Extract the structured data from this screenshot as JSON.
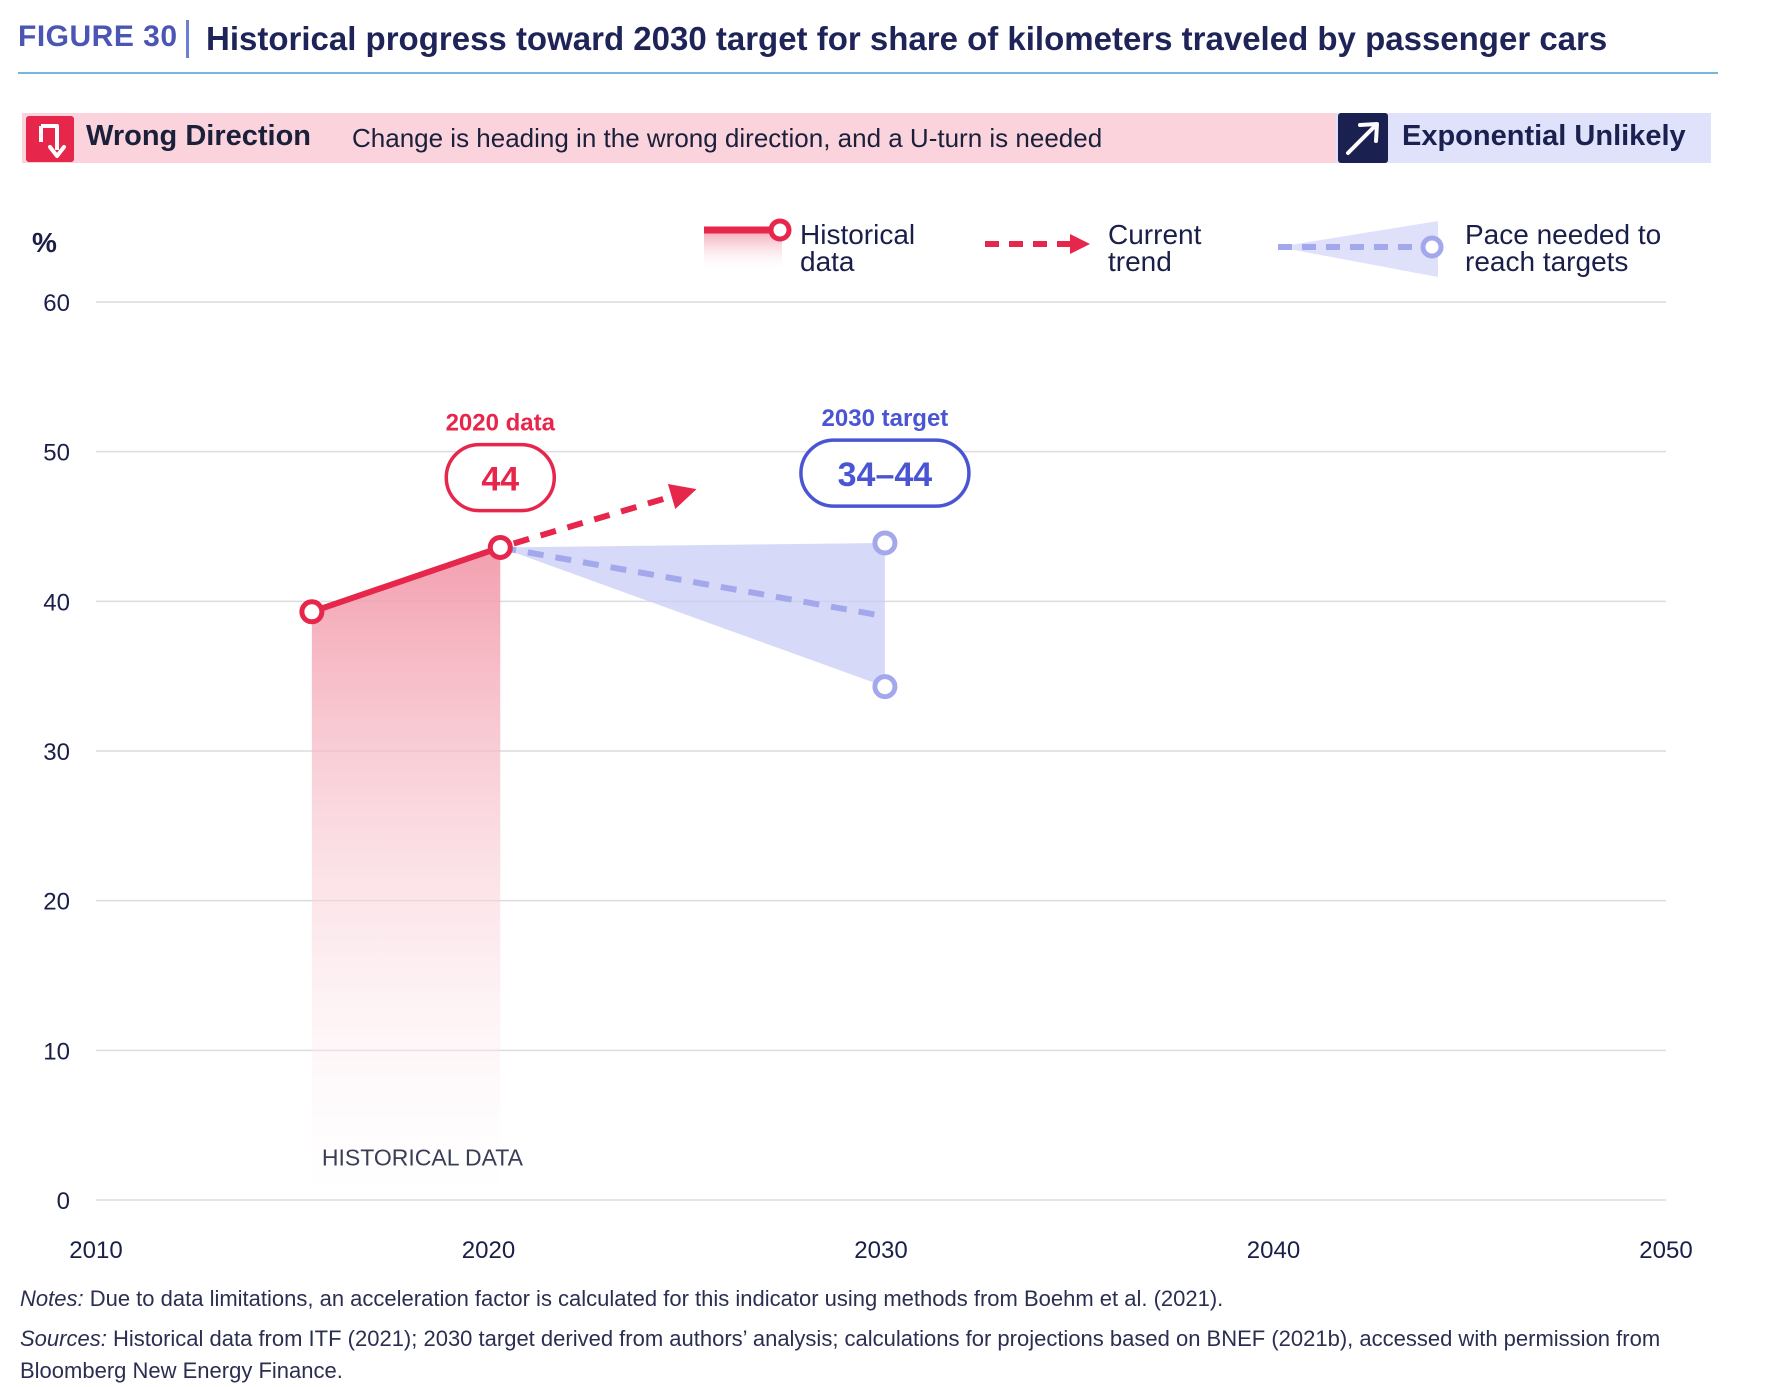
{
  "header": {
    "figure_number": "FIGURE 30",
    "title": "Historical progress toward 2030 target for share of kilometers traveled by passenger cars"
  },
  "status": {
    "label": "Wrong Direction",
    "description": "Change is heading in the wrong direction, and a U-turn is needed",
    "icon": "u-turn-down-arrow-icon",
    "color": "#e6264a",
    "band_color": "#fbd3dc"
  },
  "acceleration": {
    "label": "Exponential Unlikely",
    "icon": "diagonal-arrow-icon",
    "color": "#1a2150",
    "band_color": "#dfe2fa"
  },
  "chart_data": {
    "type": "line",
    "ylabel": "%",
    "xlim": [
      2010,
      2050
    ],
    "ylim": [
      0,
      60
    ],
    "x_ticks": [
      "2010",
      "2020",
      "2030",
      "2040",
      "2050"
    ],
    "y_ticks": [
      "0",
      "10",
      "20",
      "30",
      "40",
      "50",
      "60"
    ],
    "grid": true,
    "legend": [
      {
        "label": "Historical data",
        "style": "solid-line-circle",
        "color": "#e6264a"
      },
      {
        "label": "Current trend",
        "style": "dashed-arrow",
        "color": "#e6264a"
      },
      {
        "label": "Pace needed to reach targets",
        "style": "dashed-cone-circle",
        "color": "#a3a8ec"
      }
    ],
    "legend_placement": "top-right",
    "series": [
      {
        "name": "Historical data",
        "x": [
          2015.5,
          2020.3
        ],
        "y": [
          39.3,
          43.6
        ],
        "color": "#e6264a"
      },
      {
        "name": "Current trend",
        "x": [
          2020.3,
          2025.3
        ],
        "y": [
          43.6,
          47.5
        ],
        "color": "#e6264a"
      },
      {
        "name": "Pace needed to reach targets",
        "x": [
          2020.3,
          2030.1
        ],
        "y": [
          43.6,
          39.0
        ],
        "color": "#a3a8ec"
      }
    ],
    "target_range": {
      "x": 2030.1,
      "low": 34.3,
      "high": 43.9
    },
    "shaded_region_label": "HISTORICAL DATA",
    "annotations": [
      {
        "label": "2020 data",
        "value": "44",
        "x": 2020.3,
        "y": 48.2,
        "color": "#e6264a"
      },
      {
        "label": "2030 target",
        "value": "34–44",
        "x": 2030.1,
        "y": 48.5,
        "color": "#4a55d4"
      }
    ]
  },
  "notes": {
    "prefix": "Notes:",
    "text": " Due to data limitations, an acceleration factor is calculated for this indicator using methods from Boehm et al. (2021)."
  },
  "sources": {
    "prefix": "Sources:",
    "text": " Historical data from ITF (2021); 2030 target derived from authors’ analysis; calculations for projections based on BNEF (2021b), accessed with permission from Bloomberg New Energy Finance."
  }
}
